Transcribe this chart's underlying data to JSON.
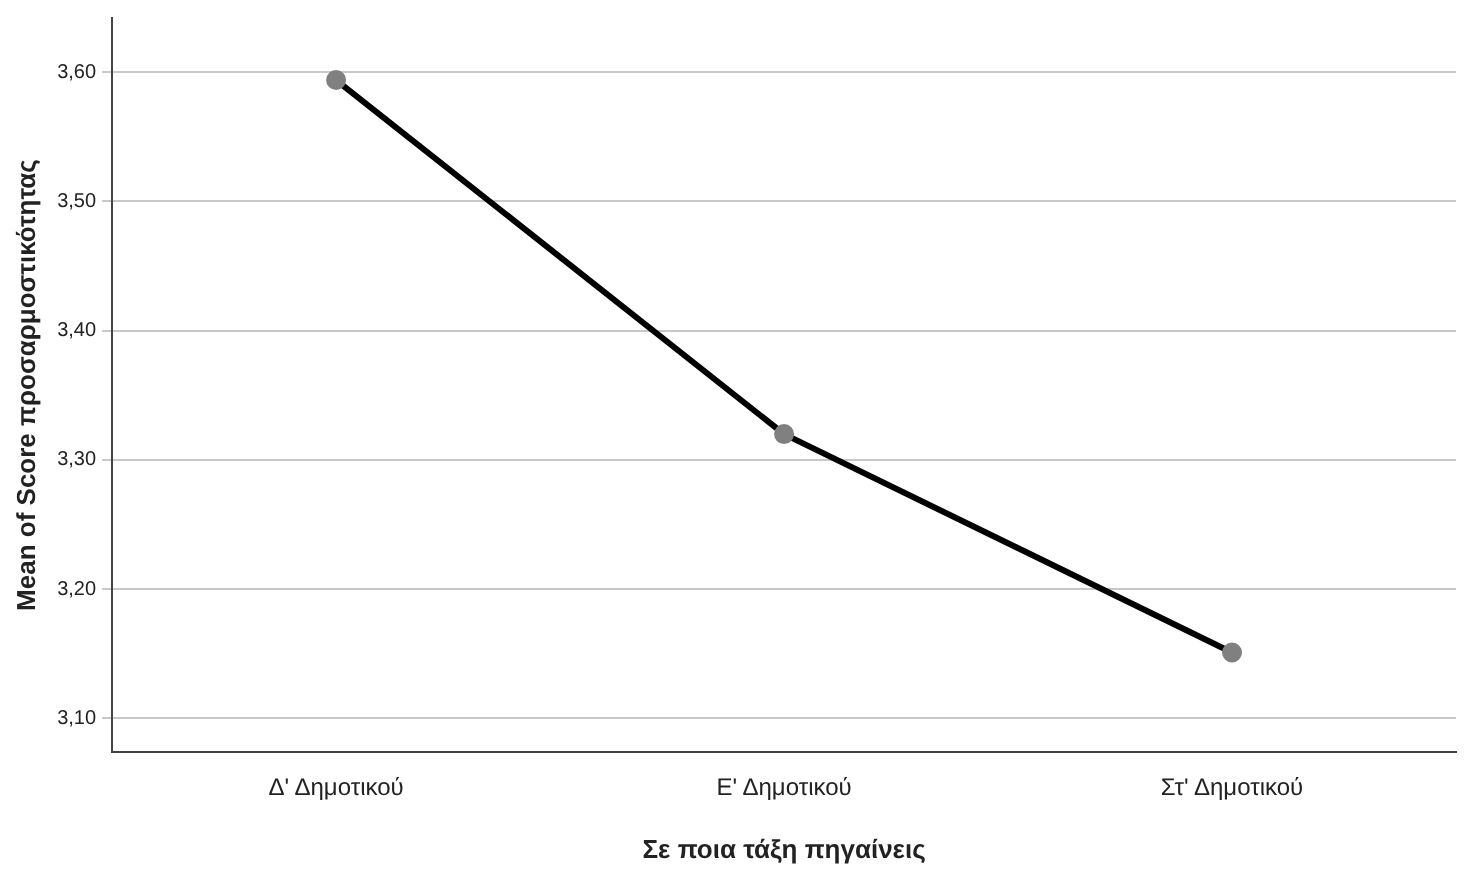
{
  "chart_data": {
    "type": "line",
    "xlabel": "Σε ποια τάξη πηγαίνεις",
    "ylabel": "Mean of Score προσαρμοστικότητας",
    "categories": [
      "Δ' Δημοτικού",
      "Ε' Δημοτικού",
      "Στ' Δημοτικού"
    ],
    "series": [
      {
        "color": "#000000",
        "values": [
          3.594,
          3.32,
          3.151
        ]
      }
    ],
    "ylim": [
      3.074,
      3.642
    ],
    "yticks": [
      {
        "value": 3.1,
        "label": "3,10"
      },
      {
        "value": 3.2,
        "label": "3,20"
      },
      {
        "value": 3.3,
        "label": "3,30"
      },
      {
        "value": 3.4,
        "label": "3,40"
      },
      {
        "value": 3.5,
        "label": "3,50"
      },
      {
        "value": 3.6,
        "label": "3,60"
      }
    ],
    "grid": "y",
    "legend": false,
    "marker": "circle",
    "line_style": "solid"
  }
}
